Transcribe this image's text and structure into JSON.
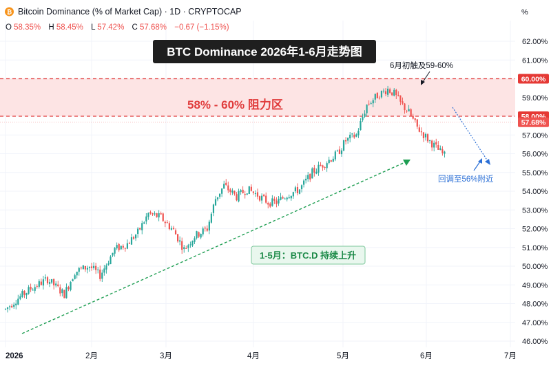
{
  "header": {
    "coin_icon": "bitcoin-icon",
    "symbol_title": "Bitcoin Dominance (% of Market Cap) · 1D · CRYPTOCAP",
    "ohlc": [
      {
        "key": "O",
        "value": "58.35%"
      },
      {
        "key": "H",
        "value": "58.45%"
      },
      {
        "key": "L",
        "value": "57.42%"
      },
      {
        "key": "C",
        "value": "57.68%"
      }
    ],
    "change": "−0.67 (−1.15%)",
    "scale_label": "%"
  },
  "colors": {
    "up": "#26a69a",
    "down": "#ef5350",
    "zone_fill": "#fde4e4",
    "zone_border": "#e03c3c",
    "trend_green": "#1e9e52",
    "annot_blue": "#2b6fd6",
    "title_bg": "#1f1f1f"
  },
  "annotations": {
    "title": "BTC Dominance 2026年1-6月走势图",
    "zone_label": "58% - 60% 阻力区",
    "peak_label": "6月初触及59-60%",
    "pullback_label": "回调至56%附近",
    "trend_label": "1-5月：BTC.D 持续上升"
  },
  "price_tags": [
    {
      "value": 60.0,
      "label": "60.00%"
    },
    {
      "value": 58.0,
      "label": "58.00%"
    },
    {
      "value": 57.68,
      "label": "57.68%"
    }
  ],
  "chart_data": {
    "type": "candlestick",
    "title": "BTC Dominance 2026年1-6月走势图",
    "ylabel": "%",
    "y_ticks": [
      "46.00%",
      "47.00%",
      "48.00%",
      "49.00%",
      "50.00%",
      "51.00%",
      "52.00%",
      "53.00%",
      "54.00%",
      "55.00%",
      "56.00%",
      "57.00%",
      "58.00%",
      "59.00%",
      "60.00%",
      "61.00%",
      "62.00%"
    ],
    "ylim": [
      46,
      62
    ],
    "x_ticks": [
      "2026",
      "2月",
      "3月",
      "4月",
      "5月",
      "6月",
      "7月"
    ],
    "resistance_zone": [
      58,
      60
    ],
    "series": [
      {
        "name": "BTC.D",
        "x": [
          0,
          1,
          2,
          3,
          4,
          5,
          6,
          7,
          8,
          9,
          10,
          11,
          12,
          13,
          14,
          15,
          16,
          17,
          18,
          19,
          20,
          21,
          22,
          23,
          24,
          25,
          26,
          27,
          28,
          29,
          30,
          31,
          32,
          33,
          34,
          35,
          36,
          37,
          38,
          39,
          40,
          41,
          42,
          43,
          44,
          45,
          46,
          47,
          48,
          49,
          50,
          51,
          52,
          53,
          54,
          55,
          56,
          57,
          58,
          59,
          60,
          61,
          62,
          63,
          64,
          65,
          66,
          67,
          68,
          69,
          70,
          71,
          72,
          73,
          74,
          75,
          76,
          77,
          78,
          79,
          80,
          81,
          82,
          83,
          84,
          85,
          86,
          87,
          88,
          89,
          90,
          91,
          92,
          93,
          94,
          95,
          96,
          97,
          98,
          99,
          100,
          101,
          102,
          103,
          104,
          105,
          106,
          107,
          108,
          109,
          110,
          111,
          112,
          113,
          114,
          115,
          116,
          117,
          118,
          119,
          120,
          121,
          122,
          123,
          124,
          125,
          126,
          127,
          128,
          129,
          130,
          131,
          132,
          133,
          134,
          135,
          136,
          137,
          138,
          139,
          140,
          141,
          142,
          143,
          144,
          145,
          146,
          147,
          148,
          149,
          150,
          151,
          152,
          153,
          154,
          155,
          156,
          157,
          158,
          159,
          160,
          161,
          162,
          163,
          164,
          165,
          166,
          167,
          168,
          169,
          170,
          171,
          172,
          173,
          174,
          175,
          176,
          177,
          178,
          179,
          180,
          181,
          182,
          183,
          184,
          185,
          186,
          187,
          188,
          189,
          190,
          191,
          192,
          193,
          194,
          195,
          196,
          197,
          198,
          199,
          200,
          201,
          202,
          203,
          204,
          205,
          206,
          207,
          208,
          209,
          210,
          211,
          212,
          213,
          214,
          215,
          216,
          217,
          218,
          219,
          220,
          221,
          222,
          223
        ],
        "knots": [
          [
            0,
            47.7
          ],
          [
            5,
            48.2
          ],
          [
            12,
            48.8
          ],
          [
            20,
            49.3
          ],
          [
            28,
            48.5
          ],
          [
            33,
            49.7
          ],
          [
            40,
            50.0
          ],
          [
            45,
            49.5
          ],
          [
            52,
            50.9
          ],
          [
            58,
            51.2
          ],
          [
            63,
            51.8
          ],
          [
            68,
            52.8
          ],
          [
            74,
            52.6
          ],
          [
            80,
            51.9
          ],
          [
            85,
            50.9
          ],
          [
            90,
            51.6
          ],
          [
            96,
            52.0
          ],
          [
            100,
            53.6
          ],
          [
            104,
            54.3
          ],
          [
            110,
            53.7
          ],
          [
            115,
            54.1
          ],
          [
            120,
            53.8
          ],
          [
            125,
            53.4
          ],
          [
            129,
            53.4
          ],
          [
            134,
            53.8
          ],
          [
            140,
            54.1
          ],
          [
            146,
            55.0
          ],
          [
            152,
            55.5
          ],
          [
            158,
            56.0
          ],
          [
            162,
            56.7
          ],
          [
            167,
            57.0
          ],
          [
            172,
            58.6
          ],
          [
            177,
            59.1
          ],
          [
            182,
            59.45
          ],
          [
            185,
            59.2
          ],
          [
            188,
            58.7
          ],
          [
            192,
            58.2
          ],
          [
            196,
            57.4
          ],
          [
            200,
            56.9
          ],
          [
            206,
            56.2
          ],
          [
            209,
            55.9
          ]
        ]
      }
    ]
  }
}
